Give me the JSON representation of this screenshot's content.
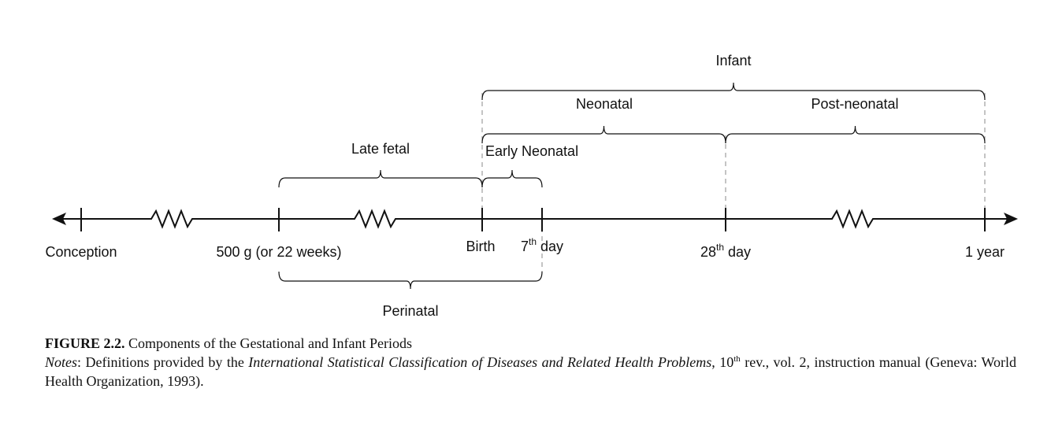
{
  "timeline": {
    "points": [
      {
        "label": "Conception"
      },
      {
        "label": "500 g (or 22 weeks)"
      },
      {
        "label": "Birth"
      },
      {
        "label": "7",
        "sup": "th",
        "suffix": " day"
      },
      {
        "label": "28",
        "sup": "th",
        "suffix": " day"
      },
      {
        "label": "1 year"
      }
    ],
    "periods": {
      "infant": "Infant",
      "neonatal": "Neonatal",
      "post_neonatal": "Post-neonatal",
      "late_fetal": "Late fetal",
      "early_neonatal": "Early Neonatal",
      "perinatal": "Perinatal"
    }
  },
  "caption": {
    "figure_label": "FIGURE 2.2.",
    "title": " Components of the Gestational and Infant Periods",
    "notes": [
      "Notes",
      ": Definitions provided by the ",
      "International Statistical Classification of Diseases and Related Health Problems",
      ", 10",
      "th",
      " rev., vol. 2, instruction manual (Geneva: World Health Organization, 1993)."
    ]
  }
}
